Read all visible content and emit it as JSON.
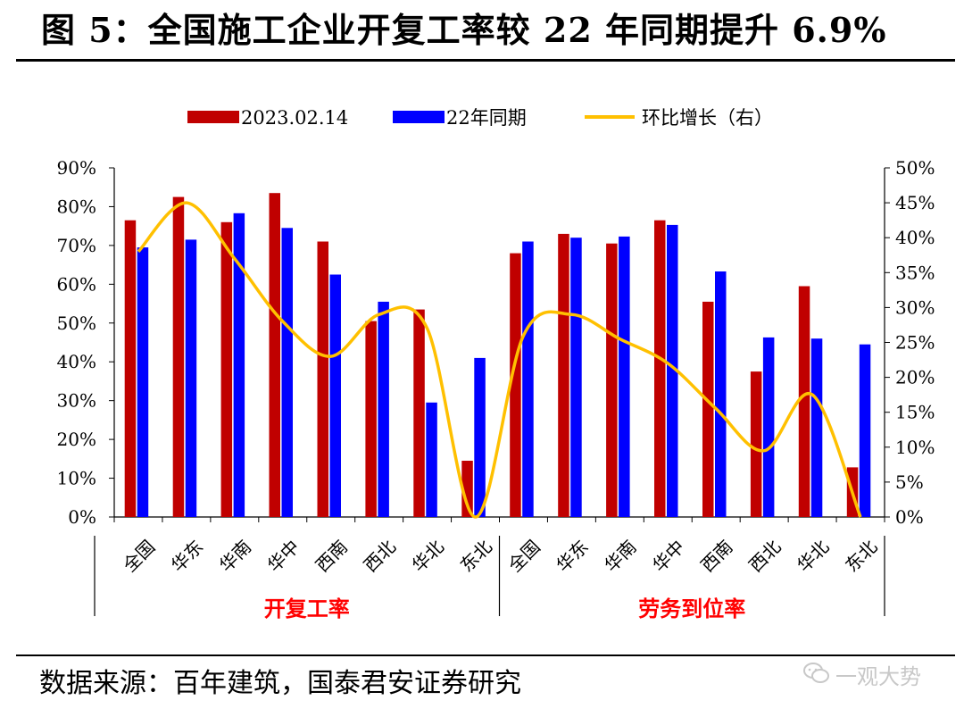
{
  "title": "图 5：全国施工企业开复工率较 22 年同期提升 6.9%",
  "source": "数据来源：百年建筑，国泰君安证券研究",
  "watermark": "一观大势",
  "chart_data": {
    "type": "bar",
    "categories": [
      "全国",
      "华东",
      "华南",
      "华中",
      "西南",
      "西北",
      "华北",
      "东北",
      "全国",
      "华东",
      "华南",
      "华中",
      "西南",
      "西北",
      "华北",
      "东北"
    ],
    "groups": [
      {
        "label": "开复工率",
        "start": 0,
        "end": 7
      },
      {
        "label": "劳务到位率",
        "start": 8,
        "end": 15
      }
    ],
    "series": [
      {
        "name": "2023.02.14",
        "axis": "left",
        "color": "#c00000",
        "values": [
          76.5,
          82.5,
          76,
          83.5,
          71,
          50.5,
          53.5,
          14.5,
          68,
          73,
          70.5,
          76.5,
          55.5,
          37.5,
          59.5,
          12.8
        ]
      },
      {
        "name": "22年同期",
        "axis": "left",
        "color": "#0000ff",
        "values": [
          69.5,
          71.5,
          78.3,
          74.5,
          62.5,
          55.5,
          29.5,
          41,
          71,
          72,
          72.3,
          75.3,
          63.3,
          46.3,
          46,
          44.5
        ]
      },
      {
        "name": "环比增长（右）",
        "axis": "right",
        "type": "line",
        "color": "#ffc000",
        "values": [
          38,
          45,
          37,
          28,
          23,
          29,
          27,
          0,
          26,
          29,
          25.5,
          22,
          15.5,
          9.5,
          17.5,
          0
        ]
      }
    ],
    "y_left": {
      "min": 0,
      "max": 90,
      "step": 10,
      "ticks": [
        "0%",
        "10%",
        "20%",
        "30%",
        "40%",
        "50%",
        "60%",
        "70%",
        "80%",
        "90%"
      ]
    },
    "y_right": {
      "min": 0,
      "max": 50,
      "step": 5,
      "ticks": [
        "0%",
        "5%",
        "10%",
        "15%",
        "20%",
        "25%",
        "30%",
        "35%",
        "40%",
        "45%",
        "50%"
      ]
    },
    "legend_position": "top-center"
  }
}
